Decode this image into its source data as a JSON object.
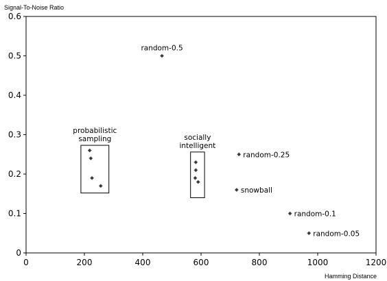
{
  "chart_data": {
    "type": "scatter",
    "title": "",
    "xlabel": "Hamming Distance",
    "ylabel": "Signal-To-Noise Ratio",
    "xlim": [
      0,
      1200
    ],
    "ylim": [
      0,
      0.6
    ],
    "x_ticks": [
      "0",
      "200",
      "400",
      "600",
      "800",
      "1000",
      "1200"
    ],
    "y_ticks": [
      "0",
      "0.1",
      "0.2",
      "0.3",
      "0.4",
      "0.5",
      "0.6"
    ],
    "grid": false,
    "legend": "none",
    "marker_color": "#333333",
    "points": [
      {
        "x": 466,
        "y": 0.5
      },
      {
        "x": 218,
        "y": 0.26
      },
      {
        "x": 222,
        "y": 0.24
      },
      {
        "x": 226,
        "y": 0.19
      },
      {
        "x": 256,
        "y": 0.17
      },
      {
        "x": 582,
        "y": 0.23
      },
      {
        "x": 582,
        "y": 0.21
      },
      {
        "x": 580,
        "y": 0.19
      },
      {
        "x": 590,
        "y": 0.18
      },
      {
        "x": 730,
        "y": 0.25
      },
      {
        "x": 722,
        "y": 0.16
      },
      {
        "x": 905,
        "y": 0.1
      },
      {
        "x": 970,
        "y": 0.05
      }
    ],
    "annotations": [
      {
        "text": "random-0.5",
        "x": 466,
        "y": 0.5
      },
      {
        "text": "random-0.25",
        "x": 730,
        "y": 0.25
      },
      {
        "text": "snowball",
        "x": 722,
        "y": 0.16
      },
      {
        "text": "random-0.1",
        "x": 905,
        "y": 0.1
      },
      {
        "text": "random-0.05",
        "x": 970,
        "y": 0.05
      }
    ],
    "groups": [
      {
        "lines": [
          "probabilistic",
          "sampling"
        ],
        "x_range": [
          188,
          284
        ],
        "y_range": [
          0.152,
          0.273
        ]
      },
      {
        "lines": [
          "socially",
          "intelligent"
        ],
        "x_range": [
          564,
          612
        ],
        "y_range": [
          0.14,
          0.256
        ]
      }
    ]
  }
}
